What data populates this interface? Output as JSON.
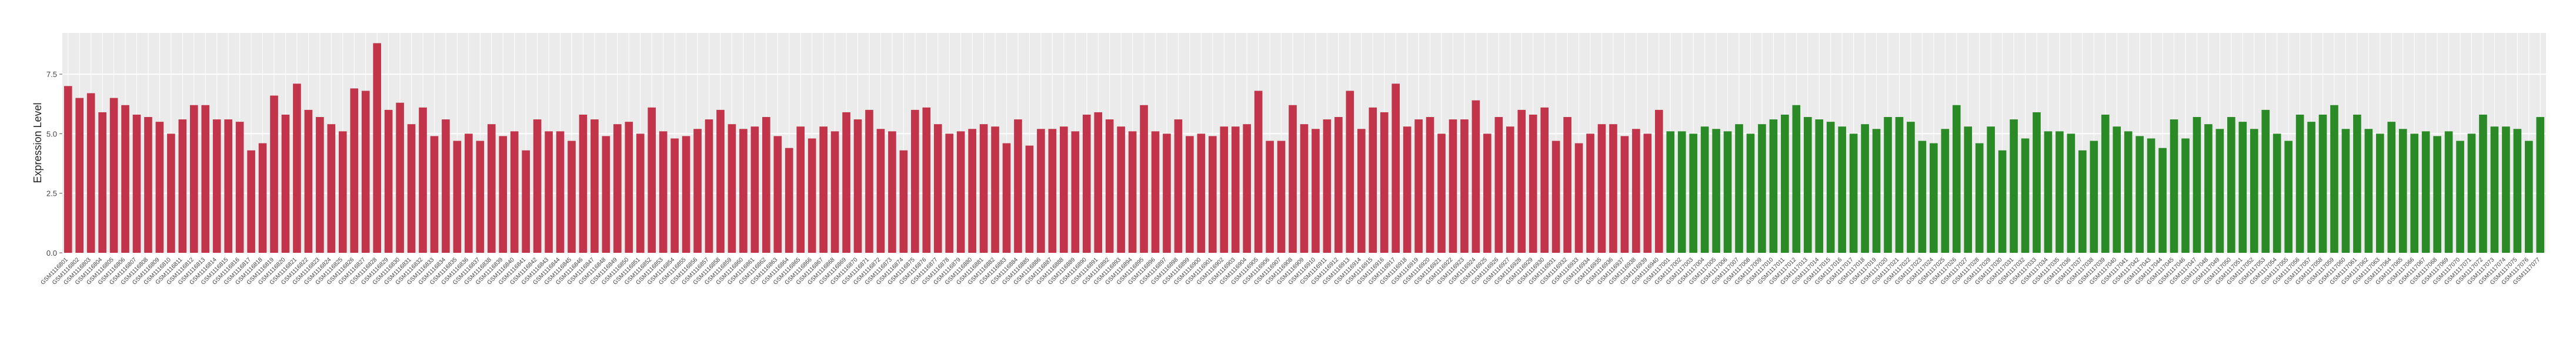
{
  "chart_data": {
    "type": "bar",
    "ylabel": "Expression Level",
    "ylim": [
      0,
      9.23
    ],
    "yticks": [
      {
        "value": 0,
        "label": "0.0"
      },
      2.5,
      {
        "value": 5,
        "label": "5.0"
      },
      7.5
    ],
    "grid": true,
    "series": [
      {
        "color": "#c1344a",
        "categories": [
          "GSM1116801",
          "GSM1116802",
          "GSM1116803",
          "GSM1116804",
          "GSM1116805",
          "GSM1116806",
          "GSM1116807",
          "GSM1116808",
          "GSM1116809",
          "GSM1116810",
          "GSM1116811",
          "GSM1116812",
          "GSM1116813",
          "GSM1116814",
          "GSM1116815",
          "GSM1116816",
          "GSM1116817",
          "GSM1116818",
          "GSM1116819",
          "GSM1116820",
          "GSM1116821",
          "GSM1116822",
          "GSM1116823",
          "GSM1116824",
          "GSM1116825",
          "GSM1116826",
          "GSM1116827",
          "GSM1116828",
          "GSM1116829",
          "GSM1116830",
          "GSM1116831",
          "GSM1116832",
          "GSM1116833",
          "GSM1116834",
          "GSM1116835",
          "GSM1116836",
          "GSM1116837",
          "GSM1116838",
          "GSM1116839",
          "GSM1116840",
          "GSM1116841",
          "GSM1116842",
          "GSM1116843",
          "GSM1116844",
          "GSM1116845",
          "GSM1116846",
          "GSM1116847",
          "GSM1116848",
          "GSM1116849",
          "GSM1116850",
          "GSM1116851",
          "GSM1116852",
          "GSM1116853",
          "GSM1116854",
          "GSM1116855",
          "GSM1116856",
          "GSM1116857",
          "GSM1116858",
          "GSM1116859",
          "GSM1116860",
          "GSM1116861",
          "GSM1116862",
          "GSM1116863",
          "GSM1116864",
          "GSM1116865",
          "GSM1116866",
          "GSM1116867",
          "GSM1116868",
          "GSM1116869",
          "GSM1116870",
          "GSM1116871",
          "GSM1116872",
          "GSM1116873",
          "GSM1116874",
          "GSM1116875",
          "GSM1116876",
          "GSM1116877",
          "GSM1116878",
          "GSM1116879",
          "GSM1116880",
          "GSM1116881",
          "GSM1116882",
          "GSM1116883",
          "GSM1116884",
          "GSM1116885",
          "GSM1116886",
          "GSM1116887",
          "GSM1116888",
          "GSM1116889",
          "GSM1116890",
          "GSM1116891",
          "GSM1116892",
          "GSM1116893",
          "GSM1116894",
          "GSM1116895",
          "GSM1116896",
          "GSM1116897",
          "GSM1116898",
          "GSM1116899",
          "GSM1116900",
          "GSM1116901",
          "GSM1116902",
          "GSM1116903",
          "GSM1116904",
          "GSM1116905",
          "GSM1116906",
          "GSM1116907",
          "GSM1116908",
          "GSM1116909",
          "GSM1116910",
          "GSM1116911",
          "GSM1116912",
          "GSM1116913",
          "GSM1116914",
          "GSM1116915",
          "GSM1116916",
          "GSM1116917",
          "GSM1116918",
          "GSM1116919",
          "GSM1116920",
          "GSM1116921",
          "GSM1116922",
          "GSM1116923",
          "GSM1116924",
          "GSM1116925",
          "GSM1116926",
          "GSM1116927",
          "GSM1116928",
          "GSM1116929",
          "GSM1116930",
          "GSM1116931",
          "GSM1116932",
          "GSM1116933",
          "GSM1116934",
          "GSM1116935",
          "GSM1116936",
          "GSM1116937",
          "GSM1116938",
          "GSM1116939",
          "GSM1116940"
        ],
        "values": [
          7.0,
          6.5,
          6.7,
          5.9,
          6.5,
          6.2,
          5.8,
          5.7,
          5.5,
          5.0,
          5.6,
          6.2,
          6.2,
          5.6,
          5.6,
          5.5,
          4.3,
          4.6,
          6.6,
          5.8,
          7.1,
          6.0,
          5.7,
          5.4,
          5.1,
          6.9,
          6.8,
          8.8,
          6.0,
          6.3,
          5.4,
          6.1,
          4.9,
          5.6,
          4.7,
          5.0,
          4.7,
          5.4,
          4.9,
          5.1,
          4.3,
          5.6,
          5.1,
          5.1,
          4.7,
          5.8,
          5.6,
          4.9,
          5.4,
          5.5,
          5.0,
          6.1,
          5.1,
          4.8,
          4.9,
          5.2,
          5.6,
          6.0,
          5.4,
          5.2,
          5.3,
          5.7,
          4.9,
          4.4,
          5.3,
          4.8,
          5.3,
          5.1,
          5.9,
          5.6,
          6.0,
          5.2,
          5.1,
          4.3,
          6.0,
          6.1,
          5.4,
          5.0,
          5.1,
          5.2,
          5.4,
          5.3,
          4.6,
          5.6,
          4.5,
          5.2,
          5.2,
          5.3,
          5.1,
          5.8,
          5.9,
          5.6,
          5.3,
          5.1,
          6.2,
          5.1,
          5.0,
          5.6,
          4.9,
          5.0,
          4.9,
          5.3,
          5.3,
          5.4,
          6.8,
          4.7,
          4.7,
          6.2,
          5.4,
          5.2,
          5.6,
          5.7,
          6.8,
          5.2,
          6.1,
          5.9,
          7.1,
          5.3,
          5.6,
          5.7,
          5.0,
          5.6,
          5.6,
          6.4,
          5.0,
          5.7,
          5.3,
          6.0,
          5.8,
          6.1,
          4.7,
          5.7,
          4.6,
          5.0,
          5.4,
          5.4,
          4.9,
          5.2,
          5.0,
          6.0
        ]
      },
      {
        "color": "#2a8a26",
        "categories": [
          "GSM1117001",
          "GSM1117002",
          "GSM1117003",
          "GSM1117004",
          "GSM1117005",
          "GSM1117006",
          "GSM1117007",
          "GSM1117008",
          "GSM1117009",
          "GSM1117010",
          "GSM1117011",
          "GSM1117012",
          "GSM1117013",
          "GSM1117014",
          "GSM1117015",
          "GSM1117016",
          "GSM1117017",
          "GSM1117018",
          "GSM1117019",
          "GSM1117020",
          "GSM1117021",
          "GSM1117022",
          "GSM1117023",
          "GSM1117024",
          "GSM1117025",
          "GSM1117026",
          "GSM1117027",
          "GSM1117028",
          "GSM1117029",
          "GSM1117030",
          "GSM1117031",
          "GSM1117032",
          "GSM1117033",
          "GSM1117034",
          "GSM1117035",
          "GSM1117036",
          "GSM1117037",
          "GSM1117038",
          "GSM1117039",
          "GSM1117040",
          "GSM1117041",
          "GSM1117042",
          "GSM1117043",
          "GSM1117044",
          "GSM1117045",
          "GSM1117046",
          "GSM1117047",
          "GSM1117048",
          "GSM1117049",
          "GSM1117050",
          "GSM1117051",
          "GSM1117052",
          "GSM1117053",
          "GSM1117054",
          "GSM1117055",
          "GSM1117056",
          "GSM1117057",
          "GSM1117058",
          "GSM1117059",
          "GSM1117060",
          "GSM1117061",
          "GSM1117062",
          "GSM1117063",
          "GSM1117064",
          "GSM1117065",
          "GSM1117066",
          "GSM1117067",
          "GSM1117068",
          "GSM1117069",
          "GSM1117070",
          "GSM1117071",
          "GSM1117072",
          "GSM1117073",
          "GSM1117074",
          "GSM1117075",
          "GSM1117076",
          "GSM1117077"
        ],
        "values": [
          5.1,
          5.1,
          5.0,
          5.3,
          5.2,
          5.1,
          5.4,
          5.0,
          5.4,
          5.6,
          5.8,
          6.2,
          5.7,
          5.6,
          5.5,
          5.3,
          5.0,
          5.4,
          5.2,
          5.7,
          5.7,
          5.5,
          4.7,
          4.6,
          5.2,
          6.2,
          5.3,
          4.6,
          5.3,
          4.3,
          5.6,
          4.8,
          5.9,
          5.1,
          5.1,
          5.0,
          4.3,
          4.7,
          5.8,
          5.3,
          5.1,
          4.9,
          4.8,
          4.4,
          5.6,
          4.8,
          5.7,
          5.4,
          5.2,
          5.7,
          5.5,
          5.2,
          6.0,
          5.0,
          4.7,
          5.8,
          5.5,
          5.8,
          6.2,
          5.2,
          5.8,
          5.2,
          5.0,
          5.5,
          5.2,
          5.0,
          5.1,
          4.9,
          5.1,
          4.7,
          5.0,
          5.8,
          5.3,
          5.3,
          5.2,
          4.7,
          5.7
        ]
      }
    ]
  }
}
